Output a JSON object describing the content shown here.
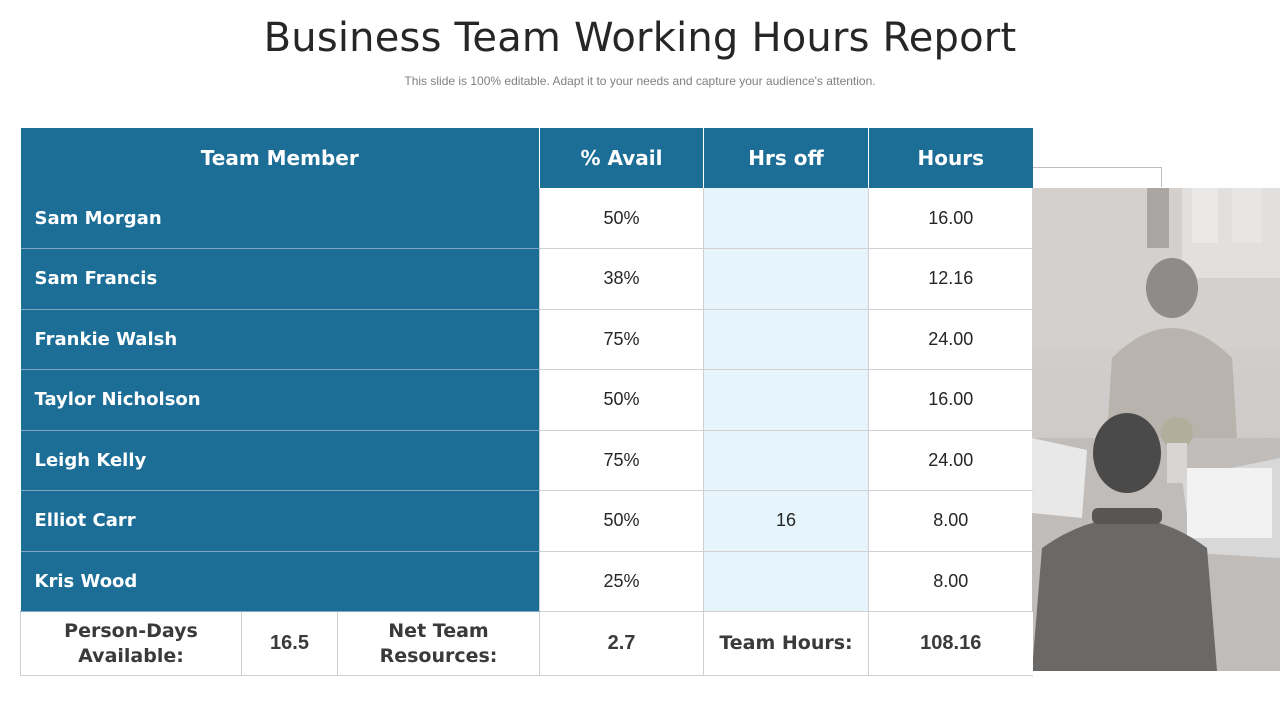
{
  "header": {
    "title": "Business Team Working Hours Report",
    "subtitle": "This slide is 100% editable. Adapt it to your needs and capture your audience's attention."
  },
  "table": {
    "columns": [
      "Team Member",
      "% Avail",
      "Hrs off",
      "Hours"
    ],
    "rows": [
      {
        "member": "Sam Morgan",
        "avail": "50%",
        "hrs_off": "",
        "hours": "16.00"
      },
      {
        "member": "Sam Francis",
        "avail": "38%",
        "hrs_off": "",
        "hours": "12.16"
      },
      {
        "member": "Frankie Walsh",
        "avail": "75%",
        "hrs_off": "",
        "hours": "24.00"
      },
      {
        "member": "Taylor Nicholson",
        "avail": "50%",
        "hrs_off": "",
        "hours": "16.00"
      },
      {
        "member": "Leigh Kelly",
        "avail": "75%",
        "hrs_off": "",
        "hours": "24.00"
      },
      {
        "member": "Elliot Carr",
        "avail": "50%",
        "hrs_off": "16",
        "hours": "8.00"
      },
      {
        "member": "Kris Wood",
        "avail": "25%",
        "hrs_off": "",
        "hours": "8.00"
      }
    ],
    "footer": {
      "person_days_label": "Person-Days Available:",
      "person_days_value": "16.5",
      "net_team_label": "Net Team Resources:",
      "net_team_value": "2.7",
      "team_hours_label": "Team Hours:",
      "team_hours_value": "108.16"
    }
  },
  "colors": {
    "header_blue": "#1c6e97",
    "hrs_off_fill": "#e6f4fb"
  },
  "photo": {
    "icon": "office-people-photo"
  }
}
